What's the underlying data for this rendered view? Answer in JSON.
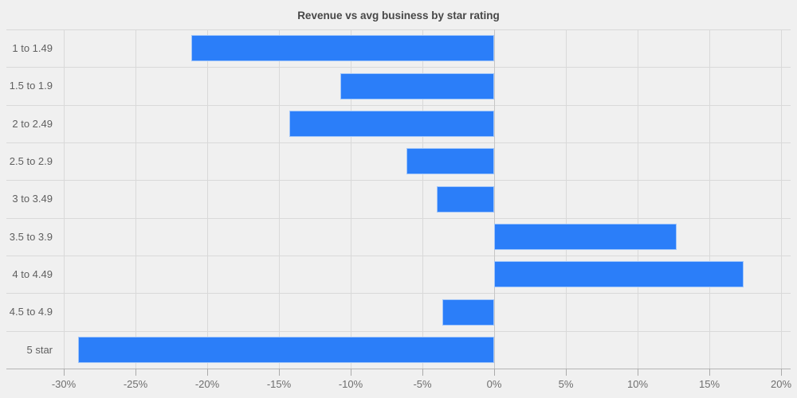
{
  "title": "Revenue vs avg business by star rating",
  "colors": {
    "background": "#f0f0f0",
    "bar": "#2b7ef9",
    "gridline": "#d9d9d9",
    "zero_line": "#c6c6c6",
    "axis_line": "#b4b4b4",
    "tick_mark": "#ababab",
    "tick_label": "#6e6e6e",
    "category_label": "#5f5f5f",
    "title_color": "#474747"
  },
  "chart_data": {
    "type": "bar",
    "orientation": "horizontal",
    "title": "Revenue vs avg business by star rating",
    "categories": [
      "1 to 1.49",
      "1.5 to 1.9",
      "2 to 2.49",
      "2.5 to 2.9",
      "3 to 3.49",
      "3.5 to 3.9",
      "4 to 4.49",
      "4.5 to 4.9",
      "5 star"
    ],
    "values": [
      -21.1,
      -10.7,
      -14.3,
      -6.1,
      -4.0,
      12.7,
      17.4,
      -3.6,
      -29.0
    ],
    "value_unit": "%",
    "xlabel": "",
    "ylabel": "",
    "xlim": [
      -30,
      20
    ],
    "x_ticks": [
      -30,
      -25,
      -20,
      -15,
      -10,
      -5,
      0,
      5,
      10,
      15,
      20
    ],
    "x_tick_labels": [
      "-30%",
      "-25%",
      "-20%",
      "-15%",
      "-10%",
      "-5%",
      "0%",
      "5%",
      "10%",
      "15%",
      "20%"
    ],
    "grid": true,
    "legend": false
  }
}
